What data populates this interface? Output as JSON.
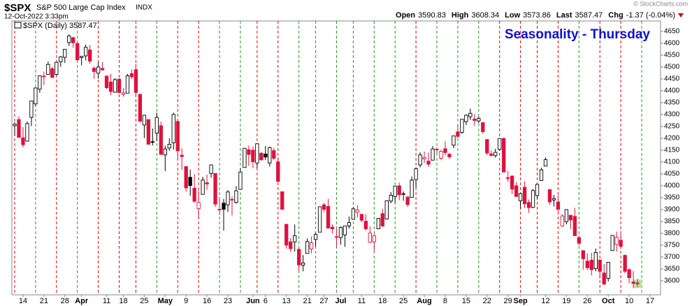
{
  "header": {
    "symbol": "$SPX",
    "name": "S&P 500 Large Cap Index",
    "exchange": "INDX",
    "timestamp": "12-Oct-2022 3:33pm",
    "copyright": "© StockCharts.com",
    "stats": [
      {
        "label": "Open",
        "value": 3590.83
      },
      {
        "label": "High",
        "value": 3608.34
      },
      {
        "label": "Low",
        "value": 3573.86
      },
      {
        "label": "Last",
        "value": 3587.47
      },
      {
        "label": "Chg",
        "value": "-1.37 (-0.04%)"
      }
    ]
  },
  "chart_data": {
    "type": "candlestick",
    "title": "Seasonality - Thursday",
    "legend": "$SPX (Daily) 3587.47",
    "up_color": "#000000",
    "down_color": "#e0103c",
    "ylim": [
      3541,
      4694
    ],
    "yticks": [
      3600,
      3650,
      3700,
      3750,
      3800,
      3850,
      3900,
      3950,
      4000,
      4050,
      4100,
      4150,
      4200,
      4250,
      4300,
      4350,
      4400,
      4450,
      4500,
      4550,
      4600,
      4650
    ],
    "categories": [
      null,
      null,
      "14",
      null,
      null,
      null,
      null,
      "21",
      null,
      null,
      null,
      null,
      "28",
      null,
      null,
      null,
      "Apr",
      null,
      null,
      null,
      null,
      null,
      "11",
      null,
      null,
      null,
      "18",
      null,
      null,
      null,
      null,
      "25",
      null,
      null,
      null,
      null,
      "May",
      null,
      null,
      null,
      null,
      "9",
      null,
      null,
      null,
      null,
      "16",
      null,
      null,
      null,
      null,
      "23",
      null,
      null,
      null,
      null,
      null,
      "Jun",
      null,
      null,
      "6",
      null,
      null,
      null,
      null,
      "13",
      null,
      null,
      null,
      null,
      "21",
      null,
      null,
      null,
      "27",
      null,
      null,
      null,
      "Jul",
      null,
      null,
      null,
      null,
      "11",
      null,
      null,
      null,
      null,
      "18",
      null,
      null,
      null,
      null,
      "25",
      null,
      null,
      null,
      null,
      "Aug",
      null,
      null,
      null,
      null,
      "8",
      null,
      null,
      null,
      null,
      "15",
      null,
      null,
      null,
      null,
      "22",
      null,
      null,
      null,
      null,
      "29",
      null,
      null,
      "Sep",
      null,
      null,
      null,
      null,
      null,
      "12",
      null,
      null,
      null,
      null,
      "19",
      null,
      null,
      null,
      null,
      "26",
      null,
      null,
      null,
      null,
      "Oct",
      null,
      null,
      null,
      null,
      "10",
      null,
      null,
      null,
      null,
      "17"
    ],
    "open": [
      4253,
      4279,
      4202,
      4188,
      4288,
      4345,
      4407,
      4462,
      4469,
      4493,
      4469,
      4522,
      4541,
      4603,
      4624,
      4599,
      4540,
      4547,
      4572,
      4495,
      4474,
      4494,
      4462,
      4437,
      4394,
      4449,
      4385,
      4390,
      4472,
      4489,
      4385,
      4256,
      4279,
      4186,
      4222,
      4253,
      4130,
      4159,
      4181,
      4271,
      4129,
      4081,
      4036,
      3990,
      3904,
      3964,
      4013,
      4052,
      4052,
      3900,
      3927,
      3920,
      3943,
      3930,
      3985,
      4077,
      4152,
      4150,
      4096,
      4137,
      4134,
      4096,
      4148,
      4101,
      3975,
      3838,
      3764,
      3764,
      3733,
      3666,
      3715,
      3734,
      3774,
      3805,
      3920,
      3913,
      3826,
      3786,
      3782,
      3793,
      3831,
      3859,
      3889,
      3880,
      3851,
      3762,
      3764,
      3819,
      3883,
      3860,
      3936,
      3955,
      4000,
      3966,
      3953,
      3951,
      4026,
      4088,
      4113,
      4104,
      4108,
      4154,
      4116,
      4156,
      4133,
      4171,
      4227,
      4225,
      4270,
      4291,
      4281,
      4273,
      4266,
      4195,
      4134,
      4127,
      4153,
      4199,
      4034,
      4041,
      4000,
      3937,
      3994,
      3930,
      3909,
      3959,
      4022,
      4083,
      3984,
      3940,
      3932,
      3831,
      3849,
      3876,
      3871,
      3782,
      3727,
      3683,
      3687,
      3651,
      3688,
      3633,
      3610,
      3727,
      3753,
      3771,
      3707,
      3647,
      3595,
      3590.83,
      null,
      null,
      null
    ],
    "high": [
      4268,
      4292,
      4247,
      4271,
      4358,
      4412,
      4465,
      4481,
      4523,
      4501,
      4520,
      4546,
      4575,
      4637,
      4627,
      4604,
      4547,
      4594,
      4593,
      4503,
      4521,
      4521,
      4464,
      4471,
      4453,
      4453,
      4411,
      4471,
      4489,
      4513,
      4386,
      4299,
      4279,
      4241,
      4308,
      4270,
      4169,
      4200,
      4308,
      4271,
      4158,
      4082,
      4068,
      4050,
      3981,
      4038,
      4047,
      4090,
      4052,
      3946,
      3944,
      3982,
      3955,
      3999,
      4075,
      4158,
      4169,
      4166,
      4177,
      4143,
      4168,
      4165,
      4160,
      4120,
      3975,
      3838,
      3779,
      3837,
      3733,
      3708,
      3779,
      3787,
      3802,
      3913,
      3928,
      3945,
      3837,
      3818,
      3829,
      3832,
      3871,
      3910,
      3918,
      3880,
      3880,
      3829,
      3796,
      3863,
      3903,
      3939,
      3974,
      3999,
      4013,
      3976,
      3953,
      4039,
      4078,
      4141,
      4144,
      4140,
      4167,
      4161,
      4151,
      4187,
      4138,
      4211,
      4257,
      4280,
      4301,
      4325,
      4302,
      4292,
      4266,
      4195,
      4149,
      4156,
      4200,
      4203,
      4062,
      4044,
      4015,
      3970,
      4019,
      3942,
      3987,
      4010,
      4076,
      4119,
      3986,
      3961,
      3959,
      3880,
      3901,
      3876,
      3907,
      3790,
      3727,
      3715,
      3718,
      3736,
      3688,
      3671,
      3679,
      3793,
      3807,
      3797,
      3711,
      3652,
      3641,
      3608.34,
      null,
      null,
      null
    ],
    "low": [
      4209,
      4202,
      4162,
      4187,
      4251,
      4335,
      4392,
      4425,
      4469,
      4455,
      4465,
      4501,
      4517,
      4589,
      4581,
      4530,
      4507,
      4528,
      4514,
      4451,
      4451,
      4485,
      4408,
      4381,
      4393,
      4392,
      4375,
      4390,
      4450,
      4384,
      4267,
      4201,
      4175,
      4170,
      4188,
      4132,
      4062,
      4147,
      4152,
      4110,
      4067,
      3975,
      3958,
      3928,
      3859,
      3963,
      3983,
      4034,
      3911,
      3877,
      3811,
      3890,
      3875,
      3925,
      3984,
      4077,
      4084,
      4074,
      4074,
      4107,
      4109,
      4081,
      4107,
      4018,
      3900,
      3735,
      3722,
      3723,
      3640,
      3640,
      3715,
      3716,
      3744,
      3805,
      3889,
      3820,
      3800,
      3739,
      3752,
      3743,
      3820,
      3858,
      3867,
      3847,
      3812,
      3759,
      3722,
      3818,
      3826,
      3860,
      3926,
      3928,
      3939,
      3937,
      3911,
      3951,
      3992,
      4078,
      4096,
      4080,
      4107,
      4135,
      4108,
      4128,
      4112,
      4159,
      4201,
      4219,
      4256,
      4277,
      4253,
      4263,
      4218,
      4129,
      4123,
      4119,
      4148,
      4057,
      4017,
      3965,
      3954,
      3904,
      3906,
      3886,
      3906,
      3944,
      4022,
      4083,
      3921,
      3913,
      3889,
      3828,
      3838,
      3818,
      3790,
      3749,
      3647,
      3645,
      3623,
      3640,
      3610,
      3584,
      3597,
      3727,
      3723,
      3743,
      3631,
      3589,
      3569,
      3573.86,
      null,
      null,
      null
    ],
    "close": [
      4259,
      4204,
      4173,
      4262,
      4357,
      4412,
      4463,
      4461,
      4511,
      4456,
      4520,
      4543,
      4575,
      4631,
      4602,
      4530,
      4545,
      4583,
      4525,
      4481,
      4500,
      4488,
      4413,
      4397,
      4447,
      4392,
      4391,
      4463,
      4459,
      4393,
      4272,
      4297,
      4175,
      4183,
      4288,
      4132,
      4155,
      4175,
      4300,
      4147,
      4123,
      3991,
      4001,
      3935,
      3930,
      4024,
      4008,
      4088,
      3923,
      3901,
      3901,
      3974,
      3941,
      3979,
      4058,
      4158,
      4132,
      4101,
      4177,
      4109,
      4121,
      4161,
      4116,
      4018,
      3901,
      3750,
      3735,
      3790,
      3667,
      3675,
      3765,
      3760,
      3796,
      3912,
      3901,
      3822,
      3819,
      3785,
      3825,
      3831,
      3845,
      3903,
      3899,
      3855,
      3819,
      3801,
      3790,
      3863,
      3831,
      3937,
      3960,
      3999,
      3962,
      3967,
      3921,
      4024,
      4072,
      4130,
      4119,
      4091,
      4155,
      4152,
      4145,
      4140,
      4122,
      4210,
      4208,
      4280,
      4297,
      4305,
      4275,
      4284,
      4228,
      4138,
      4128,
      4141,
      4199,
      4058,
      4031,
      3986,
      3955,
      3967,
      3924,
      3908,
      3980,
      4006,
      4067,
      4110,
      3932,
      3946,
      3901,
      3873,
      3900,
      3856,
      3790,
      3758,
      3693,
      3655,
      3647,
      3719,
      3640,
      3586,
      3678,
      3791,
      3783,
      3745,
      3640,
      3613,
      3589,
      3587.47,
      null,
      null,
      null
    ],
    "vline_colors": [
      "#e00000",
      null,
      null,
      null,
      null,
      "#1f9a1f",
      null,
      null,
      null,
      null,
      "#e00000",
      null,
      null,
      null,
      null,
      "#1f9a1f",
      null,
      null,
      null,
      null,
      "#e00000",
      null,
      null,
      null,
      null,
      "#e00000",
      null,
      null,
      null,
      "#e00000",
      null,
      null,
      null,
      null,
      "#1f9a1f",
      null,
      null,
      null,
      null,
      "#e00000",
      null,
      null,
      null,
      null,
      "#e00000",
      null,
      null,
      null,
      null,
      "#1f9a1f",
      null,
      null,
      null,
      null,
      "#1f9a1f",
      null,
      null,
      null,
      "#e00000",
      null,
      null,
      null,
      null,
      "#e00000",
      null,
      null,
      null,
      null,
      "#1f9a1f",
      null,
      null,
      null,
      "#1f9a1f",
      null,
      null,
      null,
      null,
      "#1f9a1f",
      null,
      null,
      null,
      "#1f9a1f",
      null,
      null,
      null,
      null,
      "#1f9a1f",
      null,
      null,
      null,
      null,
      "#1f9a1f",
      null,
      null,
      null,
      null,
      "#e00000",
      null,
      null,
      null,
      null,
      "#1f9a1f",
      null,
      null,
      null,
      null,
      "#1f9a1f",
      null,
      null,
      null,
      null,
      "#1f9a1f",
      null,
      null,
      null,
      null,
      "#e00000",
      null,
      null,
      null,
      null,
      "#e00000",
      null,
      null,
      null,
      "#e00000",
      null,
      null,
      null,
      null,
      "#e00000",
      null,
      null,
      null,
      null,
      "#1f9a1f",
      null,
      null,
      null,
      null,
      "#e00000",
      null,
      null,
      null,
      null,
      "#e00000",
      null,
      null,
      null,
      null,
      "#1f9a1f",
      null,
      null
    ]
  }
}
